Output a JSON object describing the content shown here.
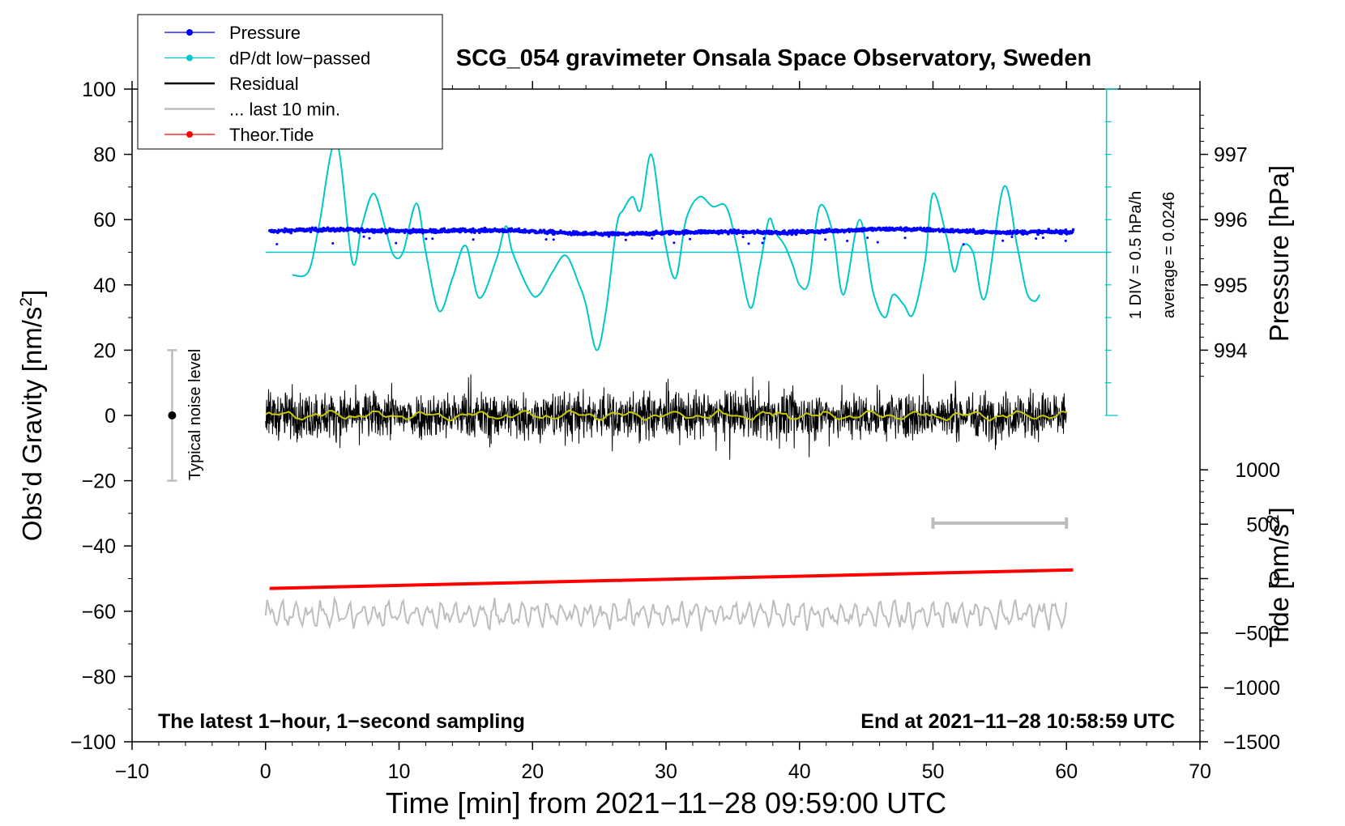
{
  "chart_data": {
    "type": "line",
    "title": "SCG_054 gravimeter Onsala Space Observatory, Sweden",
    "xlabel": "Time [min] from 2021−11−28 09:59:00 UTC",
    "ylabel_main": "Obs’d Gravity [nm/s",
    "ylabel_sup": "2",
    "ylabel_end": "]",
    "ylabel_pressure": "Pressure [hPa]",
    "ylabel_tide": "Tide [nm/s",
    "ylabel_tide_end": "]",
    "xlim": [
      -10,
      70
    ],
    "ylim": [
      -100,
      100
    ],
    "x_ticks": [
      -10,
      0,
      10,
      20,
      30,
      40,
      50,
      60,
      70
    ],
    "x_tick_labels": [
      "−10",
      "0",
      "10",
      "20",
      "30",
      "40",
      "50",
      "60",
      "70"
    ],
    "y_ticks": [
      -100,
      -80,
      -60,
      -40,
      -20,
      0,
      20,
      40,
      60,
      80,
      100
    ],
    "y_tick_labels": [
      "−100",
      "−80",
      "−60",
      "−40",
      "−20",
      "0",
      "20",
      "40",
      "60",
      "80",
      "100"
    ],
    "pressure_ticks": [
      994,
      995,
      996,
      997
    ],
    "pressure_tick_labels": [
      "994",
      "995",
      "996",
      "997"
    ],
    "pressure_lim_on_gravity_axis": {
      "hPa_994": 20,
      "hPa_997": 80
    },
    "tide_ticks": [
      -1500,
      -1000,
      -500,
      0,
      500,
      1000
    ],
    "tide_tick_labels": [
      "−1500",
      "−1000",
      "−500",
      "0",
      "500",
      "1000"
    ],
    "tide_lim": [
      -1500,
      1500
    ],
    "legend": [
      {
        "label": "Pressure",
        "color": "#0000ff",
        "style": "dot-line"
      },
      {
        "label": "dP/dt low−passed",
        "color": "#00c8c8",
        "style": "dot-line"
      },
      {
        "label": "Residual",
        "color": "#000000",
        "style": "line"
      },
      {
        "label": "... last 10 min.",
        "color": "#bdbdbd",
        "style": "line"
      },
      {
        "label": "Theor.Tide",
        "color": "#ff0000",
        "style": "dot-line"
      }
    ],
    "legend_position": "top-left",
    "noise_bar": {
      "x": -7,
      "center": 0,
      "half_range": 20,
      "label": "Typical noise level"
    },
    "dpdt_scale_bar": {
      "x": 63,
      "y_from": 0,
      "y_to": 100,
      "label": "1 DIV = 0.5 hPa/h",
      "average_label": "average = 0.0246",
      "baseline_y": 50
    },
    "range_bar_last10": {
      "x_from": 50,
      "x_to": 60,
      "y": -33
    },
    "series": [
      {
        "name": "Pressure",
        "color": "#0000ff",
        "type": "scatter",
        "x_range": [
          0.3,
          60.5
        ],
        "mean": 56.3,
        "spread": 0.9
      },
      {
        "name": "dP/dt low−passed",
        "color": "#00c8c8",
        "type": "line",
        "x": [
          2.0,
          3.2,
          4.0,
          5.3,
          6.5,
          7.2,
          8.1,
          9.0,
          9.6,
          10.3,
          11.3,
          12.0,
          13.0,
          14.0,
          15.0,
          16.0,
          17.3,
          18.0,
          18.5,
          19.8,
          20.5,
          21.5,
          22.5,
          23.5,
          24.0,
          24.8,
          25.5,
          26.3,
          26.8,
          27.5,
          28.1,
          28.9,
          29.8,
          30.7,
          31.5,
          32.5,
          33.5,
          34.5,
          35.3,
          36.3,
          37.0,
          37.7,
          38.2,
          38.9,
          39.5,
          40.0,
          40.7,
          41.5,
          42.5,
          43.3,
          44.5,
          45.5,
          46.4,
          47.0,
          47.8,
          48.5,
          49.4,
          50.0,
          51.0,
          51.6,
          52.2,
          53.0,
          53.9,
          55.3,
          56.3,
          57.0,
          57.6,
          58.0
        ],
        "y": [
          43,
          44,
          58,
          84,
          47,
          58,
          68,
          57,
          49,
          50,
          65,
          50,
          32,
          42,
          52,
          36,
          48,
          58,
          50,
          38,
          37,
          44,
          49,
          40,
          34,
          20,
          32,
          58,
          63,
          67,
          63,
          80,
          56,
          42,
          60,
          67,
          64,
          64,
          52,
          33,
          45,
          60,
          56,
          52,
          46,
          40,
          41,
          64,
          56,
          37,
          60,
          38,
          30,
          37,
          34,
          31,
          47,
          68,
          55,
          44,
          52,
          50,
          36,
          70,
          52,
          38,
          35,
          37
        ]
      },
      {
        "name": "Residual",
        "color": "#000000",
        "type": "line",
        "x_range": [
          0,
          60
        ],
        "mean": 0,
        "spread": 5
      },
      {
        "name": "Residual smoothed",
        "color": "#c8c800",
        "type": "line",
        "x_range": [
          0,
          60
        ],
        "mean": 0,
        "spread": 1
      },
      {
        "name": "Theor.Tide",
        "color": "#ff0000",
        "type": "line",
        "axis": "tide",
        "x": [
          0.3,
          60.5
        ],
        "y": [
          -90,
          80
        ]
      },
      {
        "name": "... last 10 min.",
        "color": "#bdbdbd",
        "type": "line",
        "x_range": [
          0,
          60
        ],
        "mean": -61,
        "spread": 3.5
      }
    ],
    "annotations": [
      {
        "text": "The latest 1−hour, 1−second sampling",
        "position": "bottom-left"
      },
      {
        "text": "End at 2021−11−28 10:58:59 UTC",
        "position": "bottom-right"
      }
    ]
  }
}
